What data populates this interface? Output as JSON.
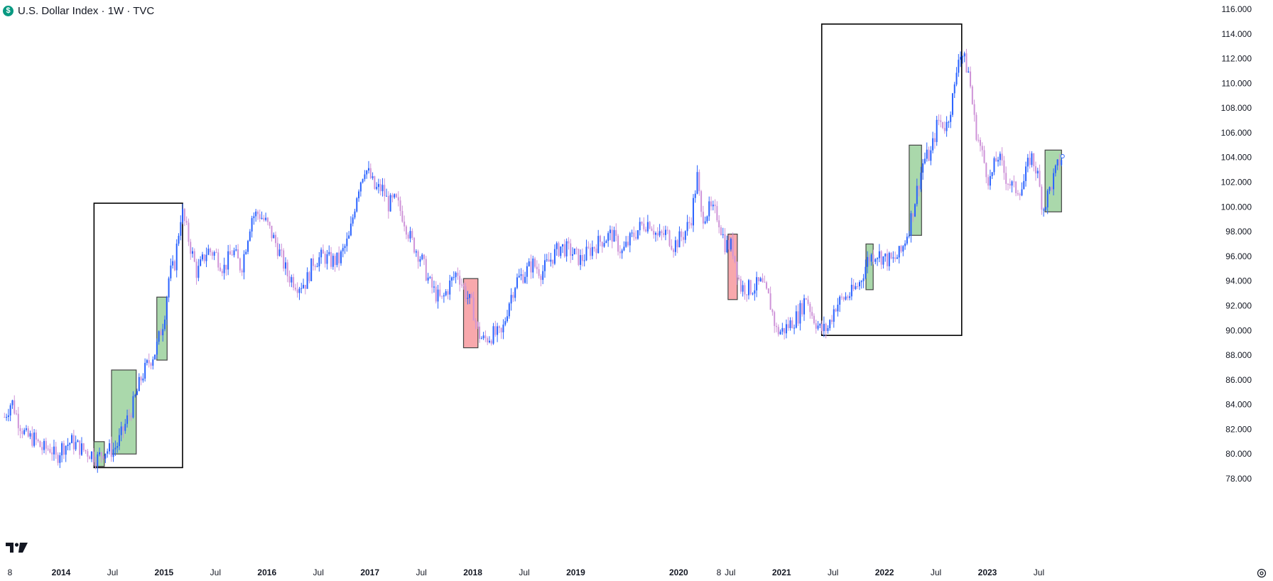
{
  "header": {
    "symbol_badge": "$",
    "title": "U.S. Dollar Index · 1W · TVC"
  },
  "chart_data": {
    "type": "candlestick",
    "title": "U.S. Dollar Index · 1W · TVC",
    "ylim": [
      77,
      116.6
    ],
    "y_ticks": [
      "116.000",
      "114.000",
      "112.000",
      "110.000",
      "108.000",
      "106.000",
      "104.000",
      "102.000",
      "100.000",
      "98.000",
      "96.000",
      "94.000",
      "92.000",
      "90.000",
      "88.000",
      "86.000",
      "84.000",
      "82.000",
      "80.000",
      "78.000"
    ],
    "x_ticks": [
      {
        "label": "8",
        "t": 2013.38,
        "major": false
      },
      {
        "label": "2014",
        "t": 2014.0,
        "major": true
      },
      {
        "label": "Jul",
        "t": 2014.5,
        "major": false
      },
      {
        "label": "2015",
        "t": 2015.0,
        "major": true
      },
      {
        "label": "Jul",
        "t": 2015.5,
        "major": false
      },
      {
        "label": "2016",
        "t": 2016.0,
        "major": true
      },
      {
        "label": "Jul",
        "t": 2016.5,
        "major": false
      },
      {
        "label": "2017",
        "t": 2017.0,
        "major": true
      },
      {
        "label": "Jul",
        "t": 2017.5,
        "major": false
      },
      {
        "label": "2018",
        "t": 2018.0,
        "major": true
      },
      {
        "label": "Jul",
        "t": 2018.5,
        "major": false
      },
      {
        "label": "2019",
        "t": 2019.0,
        "major": true
      },
      {
        "label": "8",
        "t": 2019.5,
        "major": false
      },
      {
        "label": "2020",
        "t": 2020.0,
        "major": true
      },
      {
        "label": "Jul",
        "t": 2020.5,
        "major": false
      },
      {
        "label": "2021",
        "t": 2021.0,
        "major": true
      },
      {
        "label": "Jul",
        "t": 2021.5,
        "major": false
      },
      {
        "label": "2022",
        "t": 2022.0,
        "major": true
      },
      {
        "label": "Jul",
        "t": 2022.5,
        "major": false
      },
      {
        "label": "2023",
        "t": 2023.0,
        "major": true
      },
      {
        "label": "Jul",
        "t": 2023.5,
        "major": false
      }
    ],
    "x_range": [
      2013.45,
      2024.25
    ],
    "path_points": [
      [
        2013.45,
        83.0
      ],
      [
        2013.52,
        84.3
      ],
      [
        2013.58,
        82.8
      ],
      [
        2013.66,
        81.4
      ],
      [
        2013.74,
        81.2
      ],
      [
        2013.82,
        80.4
      ],
      [
        2013.9,
        80.5
      ],
      [
        2013.95,
        79.6
      ],
      [
        2014.0,
        80.5
      ],
      [
        2014.1,
        81.0
      ],
      [
        2014.2,
        80.4
      ],
      [
        2014.3,
        80.0
      ],
      [
        2014.35,
        79.6
      ],
      [
        2014.42,
        80.3
      ],
      [
        2014.5,
        80.3
      ],
      [
        2014.55,
        80.8
      ],
      [
        2014.62,
        82.3
      ],
      [
        2014.7,
        84.0
      ],
      [
        2014.78,
        86.2
      ],
      [
        2014.85,
        87.4
      ],
      [
        2014.92,
        88.4
      ],
      [
        2015.0,
        91.0
      ],
      [
        2015.05,
        94.5
      ],
      [
        2015.1,
        95.2
      ],
      [
        2015.17,
        99.8
      ],
      [
        2015.25,
        97.0
      ],
      [
        2015.32,
        94.6
      ],
      [
        2015.42,
        96.5
      ],
      [
        2015.5,
        96.2
      ],
      [
        2015.58,
        95.0
      ],
      [
        2015.67,
        96.5
      ],
      [
        2015.75,
        95.0
      ],
      [
        2015.85,
        99.2
      ],
      [
        2015.92,
        99.5
      ],
      [
        2016.0,
        98.6
      ],
      [
        2016.1,
        96.8
      ],
      [
        2016.2,
        94.5
      ],
      [
        2016.3,
        93.7
      ],
      [
        2016.38,
        93.9
      ],
      [
        2016.45,
        95.6
      ],
      [
        2016.55,
        96.0
      ],
      [
        2016.62,
        95.6
      ],
      [
        2016.7,
        95.7
      ],
      [
        2016.8,
        97.5
      ],
      [
        2016.88,
        101.4
      ],
      [
        2016.95,
        103.2
      ],
      [
        2017.0,
        102.5
      ],
      [
        2017.05,
        101.4
      ],
      [
        2017.12,
        101.5
      ],
      [
        2017.18,
        100.2
      ],
      [
        2017.25,
        100.5
      ],
      [
        2017.32,
        99.3
      ],
      [
        2017.4,
        97.3
      ],
      [
        2017.5,
        95.8
      ],
      [
        2017.58,
        93.8
      ],
      [
        2017.65,
        92.8
      ],
      [
        2017.7,
        92.4
      ],
      [
        2017.78,
        93.8
      ],
      [
        2017.85,
        94.8
      ],
      [
        2017.92,
        93.2
      ],
      [
        2018.0,
        91.8
      ],
      [
        2018.05,
        89.8
      ],
      [
        2018.1,
        89.2
      ],
      [
        2018.2,
        89.7
      ],
      [
        2018.28,
        89.6
      ],
      [
        2018.35,
        92.3
      ],
      [
        2018.42,
        94.0
      ],
      [
        2018.5,
        94.6
      ],
      [
        2018.58,
        95.4
      ],
      [
        2018.67,
        94.7
      ],
      [
        2018.75,
        95.7
      ],
      [
        2018.85,
        96.8
      ],
      [
        2018.95,
        96.4
      ],
      [
        2019.05,
        95.7
      ],
      [
        2019.15,
        96.6
      ],
      [
        2019.25,
        97.3
      ],
      [
        2019.35,
        97.8
      ],
      [
        2019.45,
        96.3
      ],
      [
        2019.55,
        97.6
      ],
      [
        2019.65,
        98.6
      ],
      [
        2019.72,
        98.8
      ],
      [
        2019.8,
        97.5
      ],
      [
        2019.88,
        97.9
      ],
      [
        2019.95,
        96.9
      ],
      [
        2020.05,
        97.8
      ],
      [
        2020.12,
        99.0
      ],
      [
        2020.18,
        102.5
      ],
      [
        2020.22,
        99.2
      ],
      [
        2020.3,
        99.8
      ],
      [
        2020.38,
        99.3
      ],
      [
        2020.45,
        97.0
      ],
      [
        2020.52,
        96.8
      ],
      [
        2020.6,
        93.5
      ],
      [
        2020.7,
        93.4
      ],
      [
        2020.8,
        93.8
      ],
      [
        2020.88,
        92.5
      ],
      [
        2020.95,
        90.0
      ],
      [
        2021.0,
        89.9
      ],
      [
        2021.08,
        90.5
      ],
      [
        2021.16,
        91.2
      ],
      [
        2021.24,
        92.8
      ],
      [
        2021.3,
        91.2
      ],
      [
        2021.38,
        90.0
      ],
      [
        2021.45,
        90.2
      ],
      [
        2021.52,
        92.0
      ],
      [
        2021.6,
        92.6
      ],
      [
        2021.68,
        93.0
      ],
      [
        2021.76,
        93.9
      ],
      [
        2021.84,
        95.8
      ],
      [
        2021.92,
        96.3
      ],
      [
        2022.0,
        95.8
      ],
      [
        2022.08,
        95.6
      ],
      [
        2022.16,
        96.3
      ],
      [
        2022.24,
        98.4
      ],
      [
        2022.32,
        101.5
      ],
      [
        2022.38,
        103.8
      ],
      [
        2022.45,
        104.3
      ],
      [
        2022.52,
        107.0
      ],
      [
        2022.6,
        106.5
      ],
      [
        2022.68,
        109.5
      ],
      [
        2022.72,
        112.5
      ],
      [
        2022.76,
        112.2
      ],
      [
        2022.82,
        110.8
      ],
      [
        2022.88,
        106.5
      ],
      [
        2022.94,
        104.5
      ],
      [
        2023.02,
        102.0
      ],
      [
        2023.1,
        104.2
      ],
      [
        2023.18,
        102.4
      ],
      [
        2023.26,
        101.4
      ],
      [
        2023.34,
        101.6
      ],
      [
        2023.42,
        104.2
      ],
      [
        2023.48,
        102.9
      ],
      [
        2023.54,
        99.8
      ],
      [
        2023.62,
        101.8
      ],
      [
        2023.7,
        103.7
      ],
      [
        2023.73,
        104.1
      ]
    ],
    "annotations": [
      {
        "kind": "frame",
        "t0": 2014.32,
        "t1": 2015.18,
        "y0": 78.9,
        "y1": 100.3
      },
      {
        "kind": "up",
        "t0": 2014.32,
        "t1": 2014.42,
        "y0": 79.0,
        "y1": 81.0
      },
      {
        "kind": "up",
        "t0": 2014.49,
        "t1": 2014.73,
        "y0": 80.0,
        "y1": 86.8
      },
      {
        "kind": "up",
        "t0": 2014.93,
        "t1": 2015.03,
        "y0": 87.6,
        "y1": 92.7
      },
      {
        "kind": "down",
        "t0": 2017.91,
        "t1": 2018.05,
        "y0": 88.6,
        "y1": 94.2
      },
      {
        "kind": "down",
        "t0": 2020.48,
        "t1": 2020.57,
        "y0": 92.5,
        "y1": 97.8
      },
      {
        "kind": "frame",
        "t0": 2021.39,
        "t1": 2022.75,
        "y0": 89.6,
        "y1": 114.8
      },
      {
        "kind": "up",
        "t0": 2021.82,
        "t1": 2021.89,
        "y0": 93.3,
        "y1": 97.0
      },
      {
        "kind": "up",
        "t0": 2022.24,
        "t1": 2022.36,
        "y0": 97.7,
        "y1": 105.0
      },
      {
        "kind": "up",
        "t0": 2023.56,
        "t1": 2023.72,
        "y0": 99.6,
        "y1": 104.6
      }
    ],
    "colors": {
      "up": "#2962ff",
      "down": "#ce93d8",
      "up_box": "#a5d6a7",
      "down_box": "#f8a3a8",
      "frame": "#000000"
    },
    "grid": false
  }
}
